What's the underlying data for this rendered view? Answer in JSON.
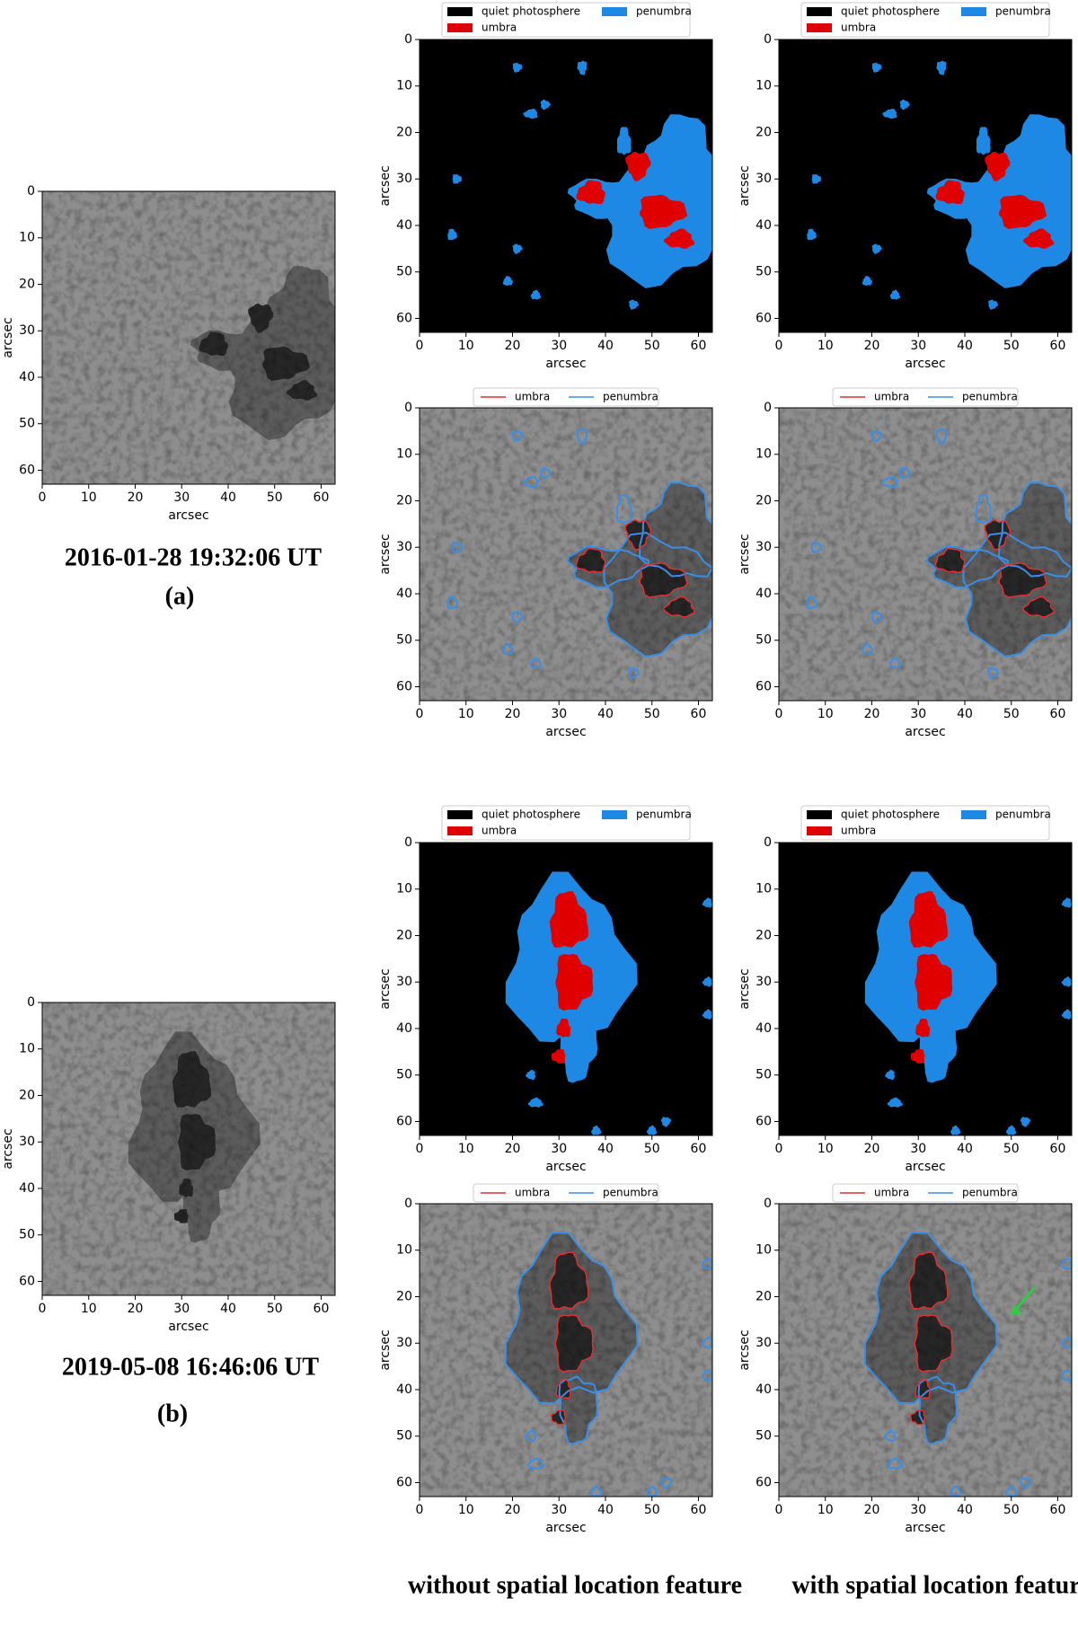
{
  "axes": {
    "xlim": [
      0,
      63
    ],
    "ylim": [
      63,
      0
    ],
    "xticks": [
      0,
      10,
      20,
      30,
      40,
      50,
      60
    ],
    "yticks": [
      0,
      10,
      20,
      30,
      40,
      50,
      60
    ],
    "xlabel": "arcsec",
    "ylabel": "arcsec"
  },
  "mask_legend": [
    {
      "name": "quiet photosphere",
      "color": "#000000"
    },
    {
      "name": "umbra",
      "color": "#e00000"
    },
    {
      "name": "penumbra",
      "color": "#1e88e5"
    }
  ],
  "contour_legend": [
    {
      "name": "umbra",
      "color": "#e03030"
    },
    {
      "name": "penumbra",
      "color": "#3a8ee6"
    }
  ],
  "observations": [
    {
      "time": "2016-01-28 19:32:06 UT",
      "label": "(a)"
    },
    {
      "time": "2019-05-08 16:46:06 UT",
      "label": "(b)"
    }
  ],
  "columns": [
    "without spatial location feature",
    "with spatial location feature"
  ]
}
